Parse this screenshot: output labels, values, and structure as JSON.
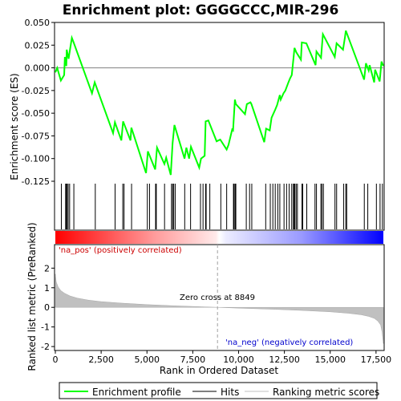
{
  "chart_data": [
    {
      "type": "line",
      "panel": "enrichment",
      "title": "Enrichment plot: GGGGCCC,MIR-296",
      "ylabel": "Enrichment score (ES)",
      "xlim": [
        0,
        17900
      ],
      "ylim": [
        -0.125,
        0.05
      ],
      "yticks": [
        0.05,
        0.025,
        0.0,
        -0.025,
        -0.05,
        -0.075,
        -0.1,
        -0.125
      ],
      "ytick_labels": [
        "0.050",
        "0.025",
        "0.000",
        "-0.025",
        "-0.050",
        "-0.075",
        "-0.100",
        "-0.125"
      ],
      "grid": false,
      "series": [
        {
          "name": "Enrichment profile",
          "color": "#00ff00",
          "x": [
            0,
            100,
            300,
            480,
            520,
            600,
            620,
            720,
            900,
            1000,
            2000,
            2150,
            3150,
            3250,
            3600,
            3700,
            4100,
            4150,
            4950,
            5050,
            5450,
            5550,
            5950,
            6050,
            6300,
            6400,
            6500,
            7050,
            7150,
            7300,
            7400,
            7850,
            7950,
            8150,
            8200,
            8350,
            8800,
            9000,
            9350,
            9450,
            9650,
            9700,
            9800,
            9850,
            10350,
            10450,
            10650,
            10700,
            11400,
            11500,
            11700,
            11800,
            12000,
            12100,
            12250,
            12300,
            12450,
            12550,
            12700,
            12800,
            12900,
            13000,
            13050,
            13150,
            13400,
            13450,
            13700,
            14200,
            14250,
            14500,
            14600,
            15250,
            15350,
            15700,
            15800,
            15850,
            16850,
            16950,
            17100,
            17150,
            17400,
            17450,
            17700,
            17800,
            17900
          ],
          "y": [
            -0.005,
            0.0,
            -0.014,
            -0.008,
            0.012,
            0.002,
            0.02,
            0.01,
            0.033,
            0.028,
            -0.028,
            -0.016,
            -0.072,
            -0.06,
            -0.08,
            -0.059,
            -0.08,
            -0.066,
            -0.116,
            -0.092,
            -0.112,
            -0.088,
            -0.106,
            -0.099,
            -0.118,
            -0.083,
            -0.063,
            -0.1,
            -0.088,
            -0.1,
            -0.087,
            -0.11,
            -0.1,
            -0.097,
            -0.059,
            -0.058,
            -0.081,
            -0.079,
            -0.09,
            -0.085,
            -0.068,
            -0.069,
            -0.035,
            -0.04,
            -0.051,
            -0.04,
            -0.038,
            -0.04,
            -0.082,
            -0.067,
            -0.069,
            -0.055,
            -0.046,
            -0.041,
            -0.03,
            -0.035,
            -0.028,
            -0.025,
            -0.017,
            -0.012,
            -0.008,
            0.011,
            0.022,
            0.017,
            0.009,
            0.028,
            0.027,
            0.003,
            0.018,
            0.011,
            0.037,
            0.012,
            0.027,
            0.02,
            0.033,
            0.041,
            -0.013,
            0.005,
            -0.003,
            0.003,
            -0.016,
            -0.002,
            -0.015,
            0.007,
            0.002
          ]
        }
      ]
    },
    {
      "type": "heatmap",
      "panel": "hit-markers",
      "xlim": [
        0,
        17900
      ],
      "gradient_colors": [
        "#ff0000",
        "#ffffff",
        "#0000ff"
      ],
      "hits": [
        330,
        560,
        600,
        640,
        700,
        780,
        1010,
        2180,
        3260,
        3680,
        3750,
        4160,
        5020,
        5140,
        5470,
        5510,
        5960,
        6340,
        6400,
        6460,
        6540,
        7060,
        7380,
        7920,
        8060,
        8200,
        8230,
        8430,
        9030,
        9350,
        9720,
        9760,
        9820,
        9850,
        10420,
        10600,
        10720,
        11480,
        11730,
        11870,
        12000,
        12140,
        12250,
        12480,
        12620,
        12760,
        12900,
        12990,
        13030,
        13070,
        13140,
        13210,
        13460,
        13500,
        13720,
        14170,
        14250,
        14490,
        14550,
        14630,
        15260,
        15350,
        15730,
        15850,
        15900,
        16860,
        17050,
        17520,
        17720,
        17850
      ]
    },
    {
      "type": "area",
      "panel": "ranked-metric",
      "xlabel": "Rank in Ordered Dataset",
      "ylabel": "Ranked list metric (PreRanked)",
      "xlim": [
        0,
        17900
      ],
      "ylim": [
        -2.2,
        3.2
      ],
      "xticks": [
        0,
        2500,
        5000,
        7500,
        10000,
        12500,
        15000,
        17500
      ],
      "xtick_labels": [
        "0",
        "2,500",
        "5,000",
        "7,500",
        "10,000",
        "12,500",
        "15,000",
        "17,500"
      ],
      "yticks": [
        2,
        1,
        0,
        -1,
        -2
      ],
      "ytick_labels": [
        "2",
        "1",
        "0",
        "-1",
        "-2"
      ],
      "color": "#c0c0c0",
      "zero_cross": 8849,
      "x": [
        0,
        50,
        150,
        300,
        500,
        800,
        1200,
        1800,
        2500,
        3500,
        5000,
        6500,
        8000,
        8849,
        10000,
        12000,
        13500,
        15000,
        16000,
        16700,
        17100,
        17400,
        17600,
        17750,
        17830,
        17900
      ],
      "y": [
        1.7,
        1.3,
        1.05,
        0.85,
        0.72,
        0.58,
        0.47,
        0.37,
        0.29,
        0.22,
        0.14,
        0.08,
        0.03,
        0.0,
        -0.04,
        -0.1,
        -0.16,
        -0.23,
        -0.3,
        -0.38,
        -0.46,
        -0.56,
        -0.7,
        -0.9,
        -1.25,
        -1.85
      ],
      "annotations": {
        "pos_label": "'na_pos' (positively correlated)",
        "neg_label": "'na_neg' (negatively correlated)",
        "zero_label": "Zero cross at 8849"
      }
    }
  ],
  "legend": {
    "items": [
      {
        "label": "Enrichment profile",
        "color": "#00ff00"
      },
      {
        "label": "Hits",
        "color": "#000000"
      },
      {
        "label": "Ranking metric scores",
        "color": "#c0c0c0"
      }
    ]
  }
}
